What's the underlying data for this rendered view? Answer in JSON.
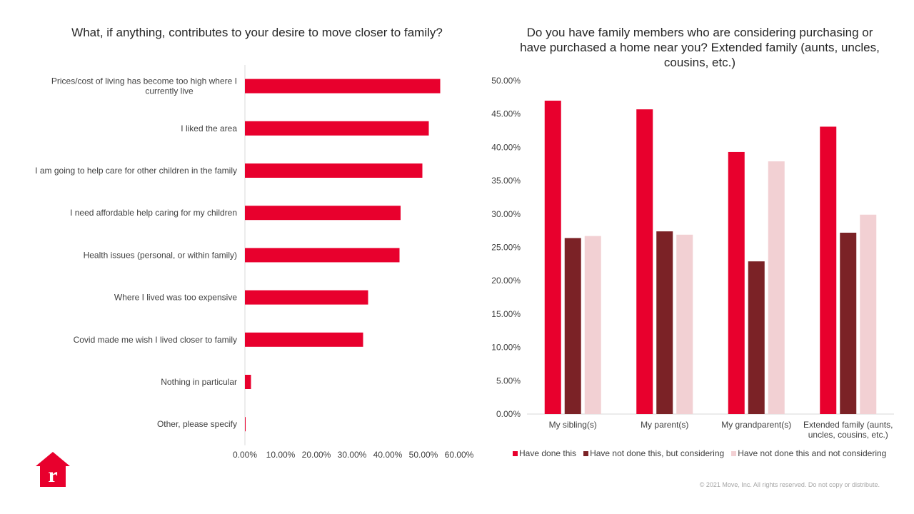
{
  "left_chart": {
    "title": "What, if anything,  contributes to your desire to move closer to family?"
  },
  "right_chart": {
    "title": "Do you have family members who are considering purchasing or have purchased a home near you? Extended family (aunts, uncles, cousins, etc.)"
  },
  "colors": {
    "have_done": "#e8002d",
    "considering": "#7b2226",
    "not_considering": "#f2d0d3"
  },
  "copyright": "© 2021 Move, Inc. All rights reserved. Do not copy or distribute.",
  "logo": {
    "icon": "realtor-house-logo-icon",
    "letter": "r"
  },
  "chart_data": [
    {
      "type": "bar",
      "orientation": "horizontal",
      "title": "What, if anything,  contributes to your desire to move closer to family?",
      "categories": [
        "Prices/cost of living has become too high where I currently live",
        "I liked the area",
        "I am going to help care for other children in the family",
        "I need affordable help caring for my children",
        "Health issues (personal, or within family)",
        "Where I lived was too expensive",
        "Covid made me wish I lived closer to family",
        "Nothing in particular",
        "Other, please specify"
      ],
      "category_lines": [
        [
          "Prices/cost of living has become too high where I",
          "currently live"
        ],
        [
          "I liked the area"
        ],
        [
          "I am going to help care for other children in the family"
        ],
        [
          "I need affordable help caring for my children"
        ],
        [
          "Health issues (personal, or within family)"
        ],
        [
          "Where I lived was too expensive"
        ],
        [
          "Covid made me wish I lived closer to family"
        ],
        [
          "Nothing in particular"
        ],
        [
          "Other, please specify"
        ]
      ],
      "values": [
        0.547,
        0.515,
        0.497,
        0.436,
        0.433,
        0.345,
        0.331,
        0.017,
        0.002
      ],
      "xlim": [
        0,
        0.6
      ],
      "xticks": [
        0,
        0.1,
        0.2,
        0.3,
        0.4,
        0.5,
        0.6
      ],
      "xtick_labels": [
        "0.00%",
        "10.00%",
        "20.00%",
        "30.00%",
        "40.00%",
        "50.00%",
        "60.00%"
      ],
      "grid": false
    },
    {
      "type": "bar",
      "orientation": "vertical",
      "title": "Do you have family members who are considering purchasing or have purchased a home near you? Extended family (aunts, uncles, cousins, etc.)",
      "categories": [
        "My sibling(s)",
        "My parent(s)",
        "My grandparent(s)",
        "Extended family (aunts, uncles, cousins, etc.)"
      ],
      "category_lines": [
        [
          "My sibling(s)"
        ],
        [
          "My parent(s)"
        ],
        [
          "My grandparent(s)"
        ],
        [
          "Extended family (aunts,",
          "uncles, cousins, etc.)"
        ]
      ],
      "series": [
        {
          "name": "Have done this",
          "values": [
            0.47,
            0.457,
            0.393,
            0.431
          ],
          "color": "#e8002d"
        },
        {
          "name": "Have not done this, but considering",
          "values": [
            0.264,
            0.274,
            0.229,
            0.272
          ],
          "color": "#7b2226"
        },
        {
          "name": "Have not done this and not considering",
          "values": [
            0.267,
            0.269,
            0.379,
            0.299
          ],
          "color": "#f2d0d3"
        }
      ],
      "ylim": [
        0,
        0.5
      ],
      "yticks": [
        0,
        0.05,
        0.1,
        0.15,
        0.2,
        0.25,
        0.3,
        0.35,
        0.4,
        0.45,
        0.5
      ],
      "ytick_labels": [
        "0.00%",
        "5.00%",
        "10.00%",
        "15.00%",
        "20.00%",
        "25.00%",
        "30.00%",
        "35.00%",
        "40.00%",
        "45.00%",
        "50.00%"
      ],
      "legend": "bottom",
      "grid": false
    }
  ]
}
